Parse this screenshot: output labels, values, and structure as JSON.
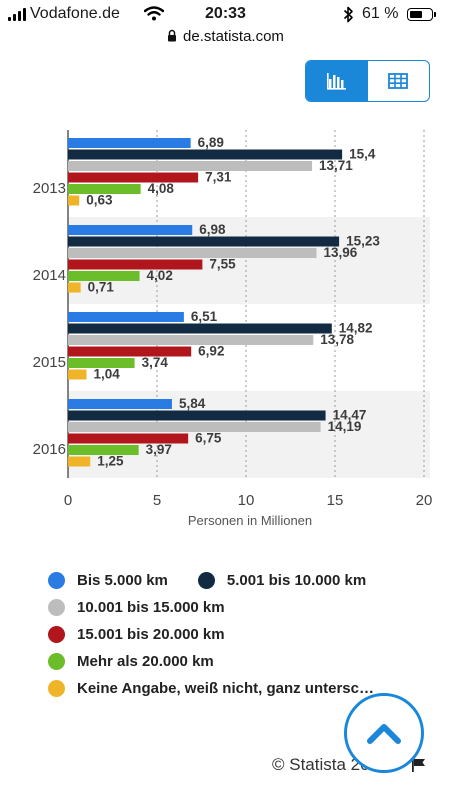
{
  "status_bar": {
    "carrier": "Vodafone.de",
    "time": "20:33",
    "battery_text": "61 %",
    "battery_level": 0.61
  },
  "browser": {
    "url": "de.statista.com"
  },
  "view_toggle": {
    "options": [
      {
        "icon": "bar-chart-icon",
        "active": true
      },
      {
        "icon": "table-icon",
        "active": false
      }
    ],
    "accent": "#1a87d9"
  },
  "chart_data": {
    "type": "bar",
    "orientation": "horizontal",
    "categories": [
      "2013",
      "2014",
      "2015",
      "2016"
    ],
    "series": [
      {
        "name": "Bis 5.000 km",
        "color": "#2b7be4",
        "values": [
          6.89,
          6.98,
          6.51,
          5.84
        ],
        "labels": [
          "6,89",
          "6,98",
          "6,51",
          "5,84"
        ]
      },
      {
        "name": "5.001 bis 10.000 km",
        "color": "#132a43",
        "values": [
          15.4,
          15.23,
          14.82,
          14.47
        ],
        "labels": [
          "15,4",
          "15,23",
          "14,82",
          "14,47"
        ]
      },
      {
        "name": "10.001 bis 15.000 km",
        "color": "#bdbdbd",
        "values": [
          13.71,
          13.96,
          13.78,
          14.19
        ],
        "labels": [
          "13,71",
          "13,96",
          "13,78",
          "14,19"
        ]
      },
      {
        "name": "15.001 bis 20.000 km",
        "color": "#b1161c",
        "values": [
          7.31,
          7.55,
          6.92,
          6.75
        ],
        "labels": [
          "7,31",
          "7,55",
          "6,92",
          "6,75"
        ]
      },
      {
        "name": "Mehr als 20.000 km",
        "color": "#6bbd2a",
        "values": [
          4.08,
          4.02,
          3.74,
          3.97
        ],
        "labels": [
          "4,08",
          "4,02",
          "3,74",
          "3,97"
        ]
      },
      {
        "name": "Keine Angabe, weiß nicht, ganz untersc…",
        "color": "#f0b429",
        "values": [
          0.63,
          0.71,
          1.04,
          1.25
        ],
        "labels": [
          "0,63",
          "0,71",
          "1,04",
          "1,25"
        ]
      }
    ],
    "xlabel": "Personen in Millionen",
    "xlim": [
      0,
      20
    ],
    "xticks": [
      "0",
      "5",
      "10",
      "15",
      "20"
    ],
    "grid": "vertical dotted",
    "legend_position": "bottom"
  },
  "footer": {
    "credits": "© Statista 20"
  }
}
